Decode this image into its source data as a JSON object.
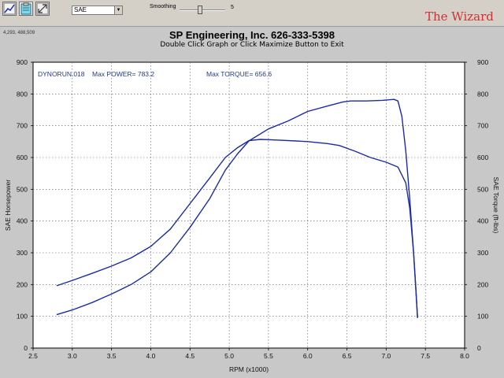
{
  "toolbar": {
    "buttons": [
      "graph-icon",
      "clipboard-icon",
      "maximize-icon"
    ],
    "correction_select": "SAE",
    "smoothing_label": "Smoothing",
    "smoothing_value": "5",
    "smoothing_level": 0.45,
    "brand": "The Wizard"
  },
  "status": {
    "coords": "4,293, 488,509"
  },
  "header": {
    "title": "SP Engineering, Inc. 626-333-5398",
    "subtitle": "Double Click Graph or Click Maximize Button to Exit"
  },
  "colors": {
    "curve": "#1c2aa8",
    "plot_bg": "#ffffff",
    "window_bg": "#c8c8c8",
    "grid": "#555555",
    "annotation": "#233a8a"
  },
  "chart_data": {
    "type": "line",
    "xlabel": "RPM (x1000)",
    "ylabel": "SAE Horsepower",
    "y2label": "SAE Torque (ft-lbs)",
    "xlim": [
      2.5,
      8.0
    ],
    "ylim": [
      0,
      900
    ],
    "xticks": [
      "2.5",
      "3.0",
      "3.5",
      "4.0",
      "4.5",
      "5.0",
      "5.5",
      "6.0",
      "6.5",
      "7.0",
      "7.5",
      "8.0"
    ],
    "yticks": [
      "0",
      "100",
      "200",
      "300",
      "400",
      "500",
      "600",
      "700",
      "800",
      "900"
    ],
    "grid": true,
    "annotations": {
      "run": "DYNORUN.018",
      "max_power": "Max POWER= 783.2",
      "max_torque": "Max TORQUE= 656.6"
    },
    "series": [
      {
        "name": "SAE Horsepower",
        "x": [
          2.8,
          3.0,
          3.25,
          3.5,
          3.75,
          4.0,
          4.25,
          4.5,
          4.75,
          4.95,
          5.1,
          5.25,
          5.5,
          5.75,
          6.0,
          6.25,
          6.45,
          6.55,
          6.75,
          6.95,
          7.1,
          7.15,
          7.2,
          7.25,
          7.3,
          7.35,
          7.38,
          7.4
        ],
        "y": [
          105,
          120,
          143,
          170,
          200,
          240,
          300,
          380,
          470,
          560,
          610,
          652,
          690,
          715,
          745,
          762,
          775,
          778,
          778,
          780,
          783,
          778,
          730,
          620,
          470,
          300,
          180,
          95
        ]
      },
      {
        "name": "SAE Torque",
        "x": [
          2.8,
          3.0,
          3.25,
          3.5,
          3.75,
          4.0,
          4.25,
          4.5,
          4.75,
          4.95,
          5.1,
          5.25,
          5.4,
          5.6,
          5.85,
          6.0,
          6.25,
          6.4,
          6.6,
          6.8,
          7.0,
          7.15,
          7.25,
          7.3,
          7.35,
          7.38,
          7.4
        ],
        "y": [
          196,
          213,
          235,
          258,
          284,
          320,
          375,
          455,
          535,
          600,
          630,
          653,
          657,
          655,
          652,
          650,
          644,
          638,
          620,
          600,
          585,
          570,
          520,
          440,
          300,
          180,
          95
        ]
      }
    ]
  }
}
